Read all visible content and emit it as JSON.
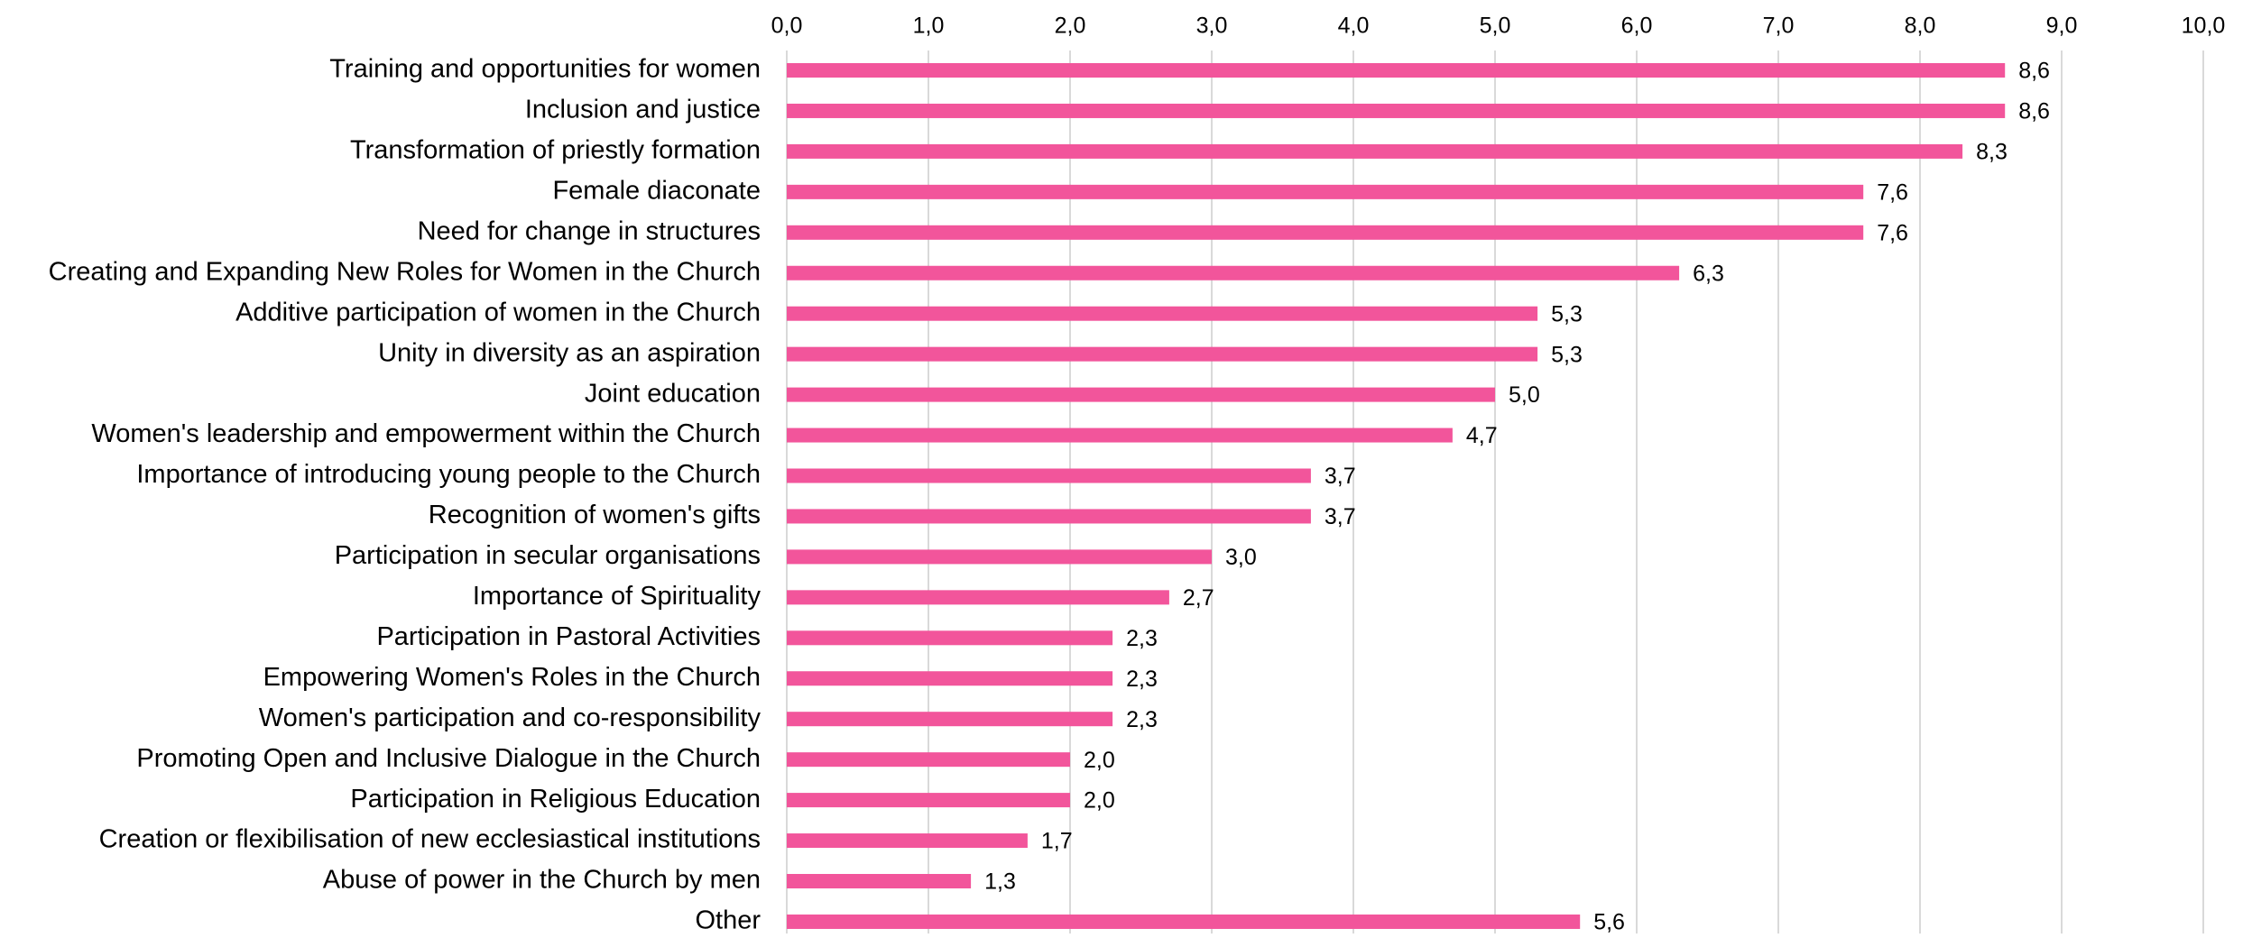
{
  "colors": {
    "bar": "#f2559b",
    "grid": "#d9d9d9",
    "text": "#000000"
  },
  "chart_data": {
    "type": "bar",
    "orientation": "horizontal",
    "categories": [
      "Training and opportunities for women",
      "Inclusion and justice",
      "Transformation of priestly formation",
      "Female diaconate",
      "Need for change in structures",
      "Creating and Expanding New Roles for Women in the Church",
      "Additive participation of women in the Church",
      "Unity in diversity as an aspiration",
      "Joint education",
      "Women's leadership and empowerment within the Church",
      "Importance of introducing young people to the Church",
      "Recognition of women's gifts",
      "Participation in secular organisations",
      "Importance of Spirituality",
      "Participation in Pastoral Activities",
      "Empowering Women's Roles in the Church",
      "Women's participation and co-responsibility",
      "Promoting Open and Inclusive Dialogue in the Church",
      "Participation in Religious Education",
      "Creation or flexibilisation of new ecclesiastical institutions",
      "Abuse of power in the Church by men",
      "Other"
    ],
    "values": [
      8.6,
      8.6,
      8.3,
      7.6,
      7.6,
      6.3,
      5.3,
      5.3,
      5.0,
      4.7,
      3.7,
      3.7,
      3.0,
      2.7,
      2.3,
      2.3,
      2.3,
      2.0,
      2.0,
      1.7,
      1.3,
      5.6
    ],
    "value_labels": [
      "8,6",
      "8,6",
      "8,3",
      "7,6",
      "7,6",
      "6,3",
      "5,3",
      "5,3",
      "5,0",
      "4,7",
      "3,7",
      "3,7",
      "3,0",
      "2,7",
      "2,3",
      "2,3",
      "2,3",
      "2,0",
      "2,0",
      "1,7",
      "1,3",
      "5,6"
    ],
    "xlim": [
      0,
      10
    ],
    "x_ticks": [
      0,
      1,
      2,
      3,
      4,
      5,
      6,
      7,
      8,
      9,
      10
    ],
    "x_tick_labels": [
      "0,0",
      "1,0",
      "2,0",
      "3,0",
      "4,0",
      "5,0",
      "6,0",
      "7,0",
      "8,0",
      "9,0",
      "10,0"
    ],
    "x_axis_position": "top",
    "grid": true,
    "legend": false,
    "title": "",
    "xlabel": "",
    "ylabel": ""
  }
}
